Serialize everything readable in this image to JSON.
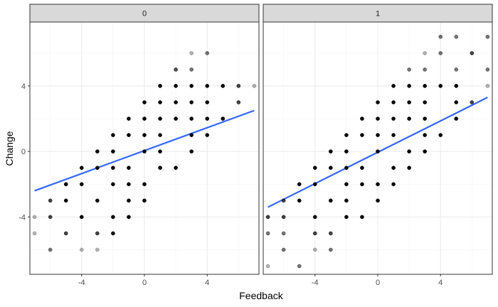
{
  "chart_data": {
    "type": "scatter",
    "xlabel": "Feedback",
    "ylabel": "Change",
    "x_ticks": [
      -4,
      0,
      4
    ],
    "y_ticks": [
      -4,
      0,
      4
    ],
    "xlim": [
      -7.3,
      7.3
    ],
    "ylim": [
      -7.5,
      7.9
    ],
    "grid": true,
    "colors": {
      "point": "#000000",
      "fit_line": "#3366ff",
      "strip_fill": "#d9d9d9",
      "panel_border": "#333333",
      "grid_major": "#ebebeb",
      "grid_minor": "#f5f5f5"
    },
    "panels": [
      {
        "facet": "0",
        "fit_line": [
          [
            -7,
            -2.4
          ],
          [
            7,
            2.5
          ]
        ],
        "points": [
          [
            3,
            6,
            0.3
          ],
          [
            4,
            6,
            0.55
          ],
          [
            3,
            5,
            0.55
          ],
          [
            2,
            5,
            0.7
          ],
          [
            -7,
            -4,
            0.3
          ],
          [
            7,
            4,
            0.3
          ],
          [
            1,
            4,
            1
          ],
          [
            2,
            4,
            1
          ],
          [
            3,
            4,
            1
          ],
          [
            4,
            4,
            1
          ],
          [
            5,
            4,
            1
          ],
          [
            6,
            4,
            0.75
          ],
          [
            0,
            3,
            1
          ],
          [
            1,
            3,
            1
          ],
          [
            2,
            3,
            1
          ],
          [
            3,
            3,
            1
          ],
          [
            4,
            3,
            1
          ],
          [
            6,
            3,
            0.75
          ],
          [
            -1,
            2,
            1
          ],
          [
            0,
            2,
            1
          ],
          [
            1,
            2,
            1
          ],
          [
            2,
            2,
            1
          ],
          [
            3,
            2,
            1
          ],
          [
            4,
            2,
            1
          ],
          [
            5,
            2,
            1
          ],
          [
            -2,
            1,
            1
          ],
          [
            -1,
            1,
            1
          ],
          [
            0,
            1,
            1
          ],
          [
            1,
            1,
            1
          ],
          [
            3,
            1,
            1
          ],
          [
            4,
            1,
            1
          ],
          [
            -3,
            0,
            1
          ],
          [
            -2,
            0,
            1
          ],
          [
            0,
            0,
            1
          ],
          [
            1,
            0,
            1
          ],
          [
            3,
            0,
            1
          ],
          [
            -4,
            -1,
            1
          ],
          [
            -3,
            -1,
            1
          ],
          [
            -2,
            -1,
            1
          ],
          [
            -1,
            -1,
            1
          ],
          [
            1,
            -1,
            1
          ],
          [
            2,
            -1,
            1
          ],
          [
            -5,
            -2,
            1
          ],
          [
            -4,
            -2,
            1
          ],
          [
            -2,
            -2,
            1
          ],
          [
            -1,
            -2,
            1
          ],
          [
            0,
            -2,
            1
          ],
          [
            -6,
            -3,
            0.75
          ],
          [
            -5,
            -3,
            1
          ],
          [
            -3,
            -3,
            1
          ],
          [
            -1,
            -3,
            1
          ],
          [
            0,
            -3,
            1
          ],
          [
            -6,
            -4,
            0.75
          ],
          [
            -4,
            -4,
            1
          ],
          [
            -2,
            -4,
            1
          ],
          [
            -1,
            -4,
            1
          ],
          [
            -7,
            -5,
            0.3
          ],
          [
            -5,
            -5,
            0.75
          ],
          [
            -3,
            -5,
            0.75
          ],
          [
            -2,
            -5,
            1
          ],
          [
            -6,
            -6,
            0.55
          ],
          [
            -4,
            -6,
            0.3
          ],
          [
            -3,
            -6,
            0.3
          ]
        ]
      },
      {
        "facet": "1",
        "fit_line": [
          [
            -7,
            -3.4
          ],
          [
            7,
            3.3
          ]
        ],
        "points": [
          [
            4,
            7,
            0.55
          ],
          [
            5,
            7,
            0.55
          ],
          [
            7,
            7,
            0.55
          ],
          [
            3,
            6,
            0.3
          ],
          [
            4,
            6,
            0.55
          ],
          [
            6,
            6,
            0.75
          ],
          [
            2,
            5,
            0.55
          ],
          [
            3,
            5,
            0.55
          ],
          [
            5,
            5,
            0.55
          ],
          [
            7,
            5,
            0.55
          ],
          [
            1,
            4,
            1
          ],
          [
            2,
            4,
            1
          ],
          [
            3,
            4,
            1
          ],
          [
            4,
            4,
            1
          ],
          [
            5,
            4,
            1
          ],
          [
            7,
            4,
            0.3
          ],
          [
            0,
            3,
            1
          ],
          [
            1,
            3,
            1
          ],
          [
            2,
            3,
            1
          ],
          [
            3,
            3,
            1
          ],
          [
            5,
            3,
            1
          ],
          [
            6,
            3,
            0.75
          ],
          [
            -1,
            2,
            1
          ],
          [
            0,
            2,
            1
          ],
          [
            1,
            2,
            1
          ],
          [
            2,
            2,
            1
          ],
          [
            3,
            2,
            1
          ],
          [
            5,
            2,
            1
          ],
          [
            -2,
            1,
            1
          ],
          [
            -1,
            1,
            1
          ],
          [
            0,
            1,
            1
          ],
          [
            1,
            1,
            1
          ],
          [
            3,
            1,
            1
          ],
          [
            4,
            1,
            1
          ],
          [
            -3,
            0,
            1
          ],
          [
            -2,
            0,
            1
          ],
          [
            0,
            0,
            1
          ],
          [
            2,
            0,
            1
          ],
          [
            3,
            0,
            1
          ],
          [
            -4,
            -1,
            1
          ],
          [
            -3,
            -1,
            1
          ],
          [
            -2,
            -1,
            1
          ],
          [
            -1,
            -1,
            1
          ],
          [
            1,
            -1,
            1
          ],
          [
            2,
            -1,
            1
          ],
          [
            -5,
            -2,
            1
          ],
          [
            -4,
            -2,
            1
          ],
          [
            -2,
            -2,
            1
          ],
          [
            -1,
            -2,
            1
          ],
          [
            0,
            -2,
            1
          ],
          [
            1,
            -2,
            1
          ],
          [
            -6,
            -3,
            0.75
          ],
          [
            -5,
            -3,
            1
          ],
          [
            -3,
            -3,
            1
          ],
          [
            -2,
            -3,
            1
          ],
          [
            0,
            -3,
            1
          ],
          [
            -7,
            -4,
            0.75
          ],
          [
            -6,
            -4,
            0.75
          ],
          [
            -4,
            -4,
            1
          ],
          [
            -2,
            -4,
            1
          ],
          [
            -1,
            -4,
            1
          ],
          [
            -7,
            -5,
            0.55
          ],
          [
            -6,
            -5,
            0.55
          ],
          [
            -4,
            -5,
            0.75
          ],
          [
            -3,
            -5,
            0.75
          ],
          [
            -6,
            -6,
            0.55
          ],
          [
            -4,
            -6,
            0.3
          ],
          [
            -3,
            -6,
            0.55
          ],
          [
            -7,
            -7,
            0.3
          ],
          [
            -5,
            -7,
            0.55
          ]
        ]
      }
    ]
  }
}
